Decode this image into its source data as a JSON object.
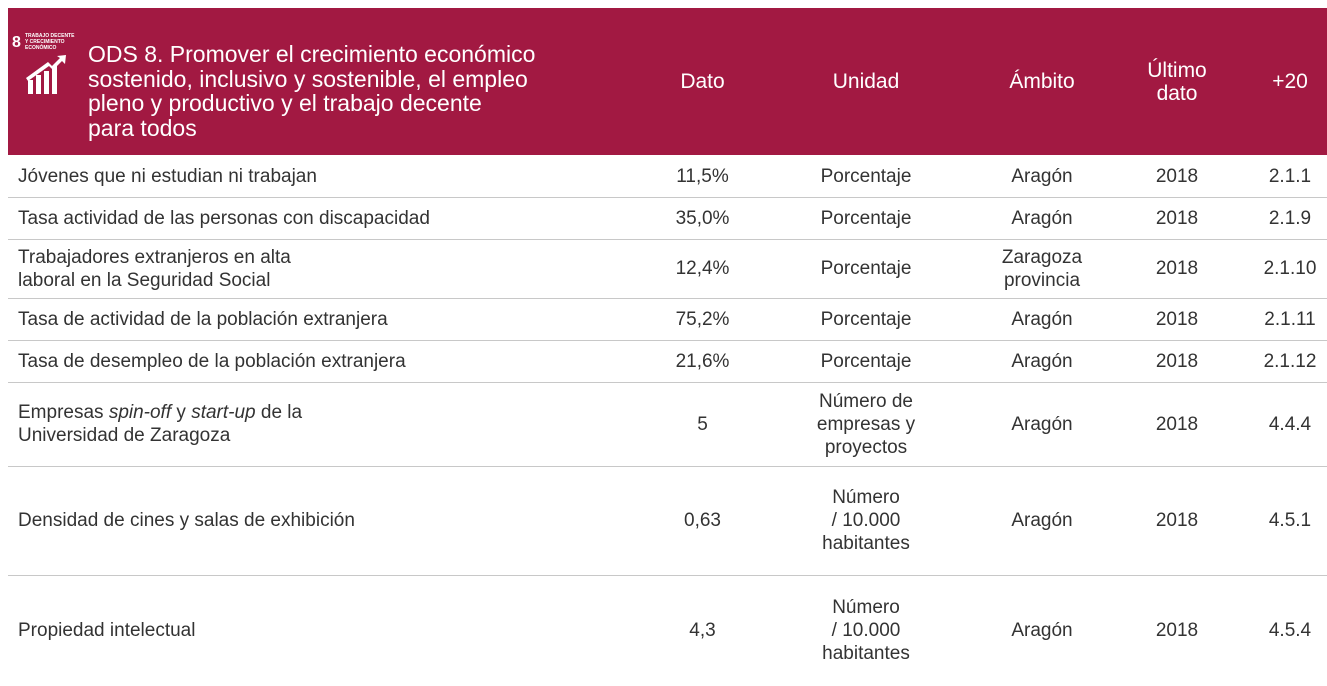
{
  "header": {
    "icon": {
      "number": "8",
      "label": [
        "TRABAJO DECENTE",
        "Y CRECIMIENTO",
        "ECONÓMICO"
      ]
    },
    "title": [
      "ODS 8. Promover el crecimiento económico",
      "sostenido, inclusivo y sostenible, el empleo",
      "pleno y productivo y el trabajo decente",
      "para todos"
    ],
    "columns": [
      [
        "Dato"
      ],
      [
        "Unidad"
      ],
      [
        "Ámbito"
      ],
      [
        "Último",
        "dato"
      ],
      [
        "+20"
      ]
    ]
  },
  "table": {
    "rows": [
      {
        "indicator": [
          [
            "Jóvenes que ni estudian ni trabajan"
          ]
        ],
        "value": "11,5%",
        "unit": [
          "Porcentaje"
        ],
        "scope": [
          "Aragón"
        ],
        "year": "2018",
        "ref": "2.1.1"
      },
      {
        "indicator": [
          [
            "Tasa actividad de las personas con discapacidad"
          ]
        ],
        "value": "35,0%",
        "unit": [
          "Porcentaje"
        ],
        "scope": [
          "Aragón"
        ],
        "year": "2018",
        "ref": "2.1.9"
      },
      {
        "indicator": [
          [
            "Trabajadores extranjeros en alta"
          ],
          [
            "laboral en la Seguridad Social"
          ]
        ],
        "value": "12,4%",
        "unit": [
          "Porcentaje"
        ],
        "scope": [
          "Zaragoza",
          "provincia"
        ],
        "year": "2018",
        "ref": "2.1.10"
      },
      {
        "indicator": [
          [
            "Tasa de actividad de la población extranjera"
          ]
        ],
        "value": "75,2%",
        "unit": [
          "Porcentaje"
        ],
        "scope": [
          "Aragón"
        ],
        "year": "2018",
        "ref": "2.1.11"
      },
      {
        "indicator": [
          [
            "Tasa de desempleo de la población extranjera"
          ]
        ],
        "value": "21,6%",
        "unit": [
          "Porcentaje"
        ],
        "scope": [
          "Aragón"
        ],
        "year": "2018",
        "ref": "2.1.12"
      },
      {
        "indicator": [
          [
            "Empresas ",
            "spin-off",
            " y ",
            "start-up",
            " de la"
          ],
          [
            "Universidad de Zaragoza"
          ]
        ],
        "value": "5",
        "unit": [
          "Número de",
          "empresas y",
          "proyectos"
        ],
        "scope": [
          "Aragón"
        ],
        "year": "2018",
        "ref": "4.4.4"
      },
      {
        "indicator": [
          [
            "Densidad de cines y salas de exhibición"
          ]
        ],
        "value": "0,63",
        "unit": [
          "Número",
          "/ 10.000",
          "habitantes"
        ],
        "scope": [
          "Aragón"
        ],
        "year": "2018",
        "ref": "4.5.1"
      },
      {
        "indicator": [
          [
            "Propiedad intelectual"
          ]
        ],
        "value": "4,3",
        "unit": [
          "Número",
          "/ 10.000",
          "habitantes"
        ],
        "scope": [
          "Aragón"
        ],
        "year": "2018",
        "ref": "4.5.4"
      }
    ]
  }
}
